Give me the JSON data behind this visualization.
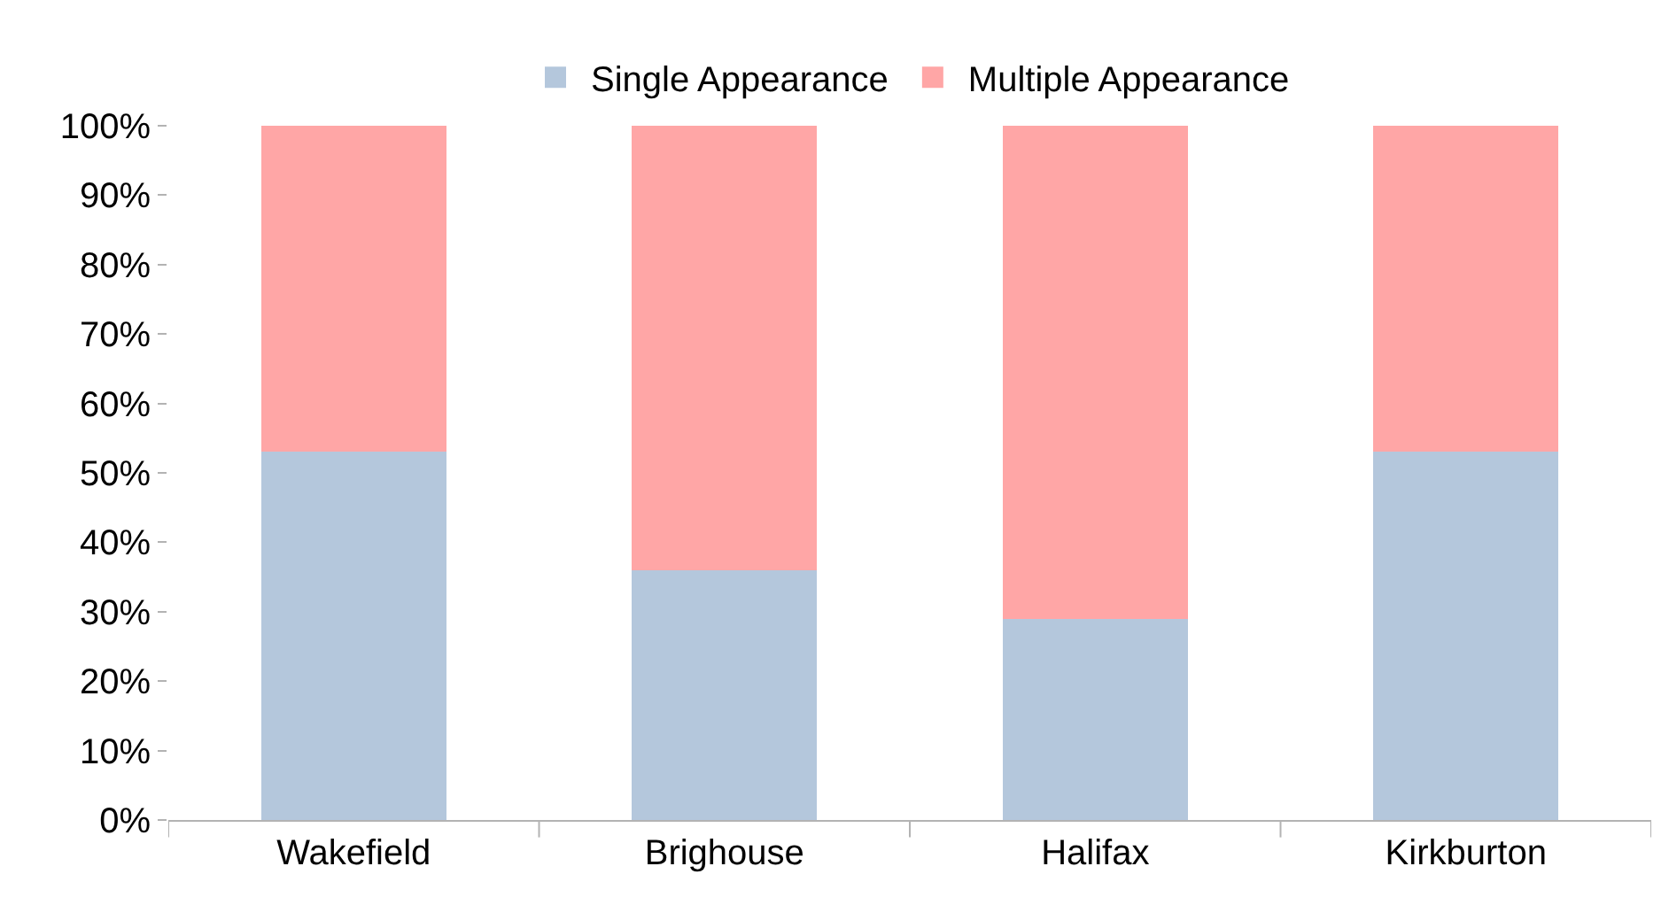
{
  "chart_data": {
    "type": "bar",
    "stacked": true,
    "categories": [
      "Wakefield",
      "Brighouse",
      "Halifax",
      "Kirkburton"
    ],
    "series": [
      {
        "name": "Single Appearance",
        "color": "#b4c7dc",
        "values": [
          53,
          36,
          29,
          53
        ]
      },
      {
        "name": "Multiple Appearance",
        "color": "#ffa6a6",
        "values": [
          47,
          64,
          71,
          47
        ]
      }
    ],
    "ylim": [
      0,
      100
    ],
    "yticks": [
      {
        "value": 0,
        "label": "0%"
      },
      {
        "value": 10,
        "label": "10%"
      },
      {
        "value": 20,
        "label": "20%"
      },
      {
        "value": 30,
        "label": "30%"
      },
      {
        "value": 40,
        "label": "40%"
      },
      {
        "value": 50,
        "label": "50%"
      },
      {
        "value": 60,
        "label": "60%"
      },
      {
        "value": 70,
        "label": "70%"
      },
      {
        "value": 80,
        "label": "80%"
      },
      {
        "value": 90,
        "label": "90%"
      },
      {
        "value": 100,
        "label": "100%"
      }
    ],
    "legend": "top"
  }
}
